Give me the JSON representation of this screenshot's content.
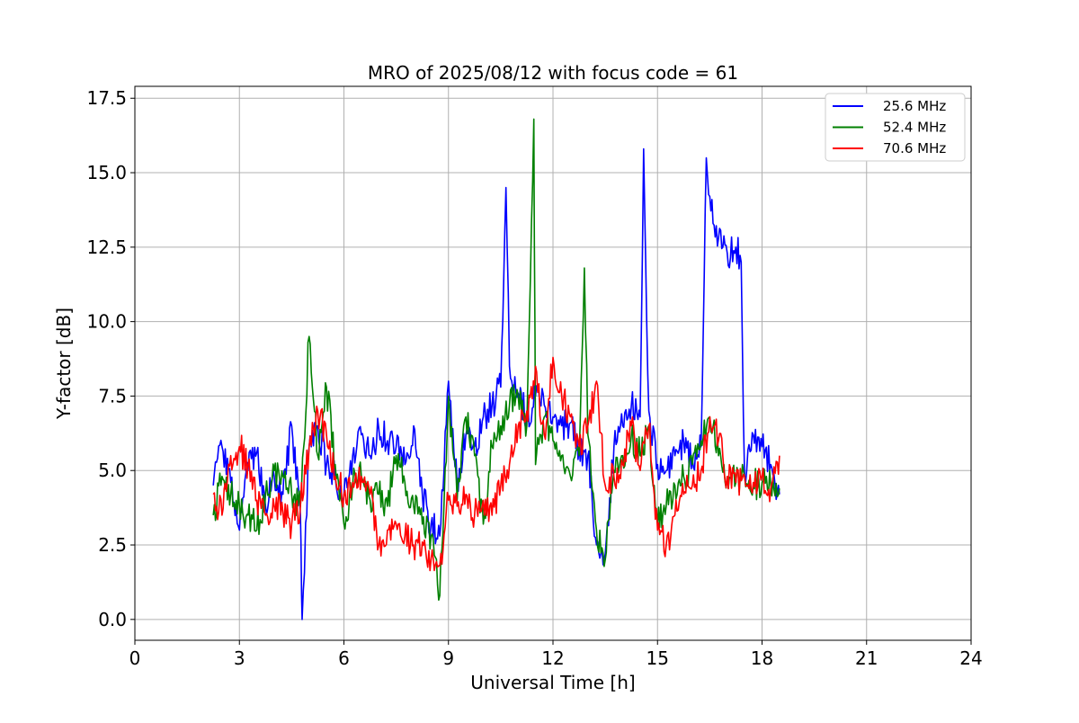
{
  "chart_data": {
    "type": "line",
    "title": "MRO of 2025/08/12 with focus code = 61",
    "xlabel": "Universal Time [h]",
    "ylabel": "Y-factor [dB]",
    "xlim": [
      0,
      24
    ],
    "ylim": [
      -0.7,
      17.9
    ],
    "xticks": [
      0,
      3,
      6,
      9,
      12,
      15,
      18,
      21,
      24
    ],
    "yticks": [
      0.0,
      2.5,
      5.0,
      7.5,
      10.0,
      12.5,
      15.0,
      17.5
    ],
    "xtick_labels": [
      "0",
      "3",
      "6",
      "9",
      "12",
      "15",
      "18",
      "21",
      "24"
    ],
    "ytick_labels": [
      "0.0",
      "2.5",
      "5.0",
      "7.5",
      "10.0",
      "12.5",
      "15.0",
      "17.5"
    ],
    "grid": true,
    "legend_position": "top-right",
    "series": [
      {
        "name": "25.6 MHz",
        "color": "#0000ff",
        "x": [
          2.25,
          2.5,
          2.75,
          3.0,
          3.25,
          3.5,
          3.75,
          4.0,
          4.25,
          4.5,
          4.75,
          4.8,
          5.0,
          5.25,
          5.5,
          5.75,
          6.0,
          6.25,
          6.5,
          6.75,
          7.0,
          7.25,
          7.5,
          7.75,
          8.0,
          8.25,
          8.5,
          8.75,
          9.0,
          9.25,
          9.5,
          9.75,
          10.0,
          10.25,
          10.5,
          10.65,
          10.75,
          11.0,
          11.25,
          11.5,
          11.75,
          12.0,
          12.25,
          12.5,
          12.75,
          13.0,
          13.25,
          13.5,
          13.75,
          14.0,
          14.25,
          14.5,
          14.6,
          14.75,
          15.0,
          15.25,
          15.5,
          15.75,
          16.0,
          16.25,
          16.4,
          16.5,
          16.75,
          17.0,
          17.25,
          17.4,
          17.5,
          17.75,
          18.0,
          18.25,
          18.5
        ],
        "y": [
          4.5,
          5.8,
          4.6,
          3.0,
          5.0,
          5.6,
          3.8,
          4.8,
          4.2,
          6.5,
          3.5,
          0.0,
          5.8,
          6.5,
          5.2,
          4.8,
          4.2,
          5.5,
          6.2,
          5.5,
          6.4,
          6.0,
          5.8,
          5.2,
          6.5,
          4.2,
          3.2,
          2.8,
          8.0,
          4.5,
          6.2,
          5.8,
          6.8,
          7.2,
          7.8,
          14.5,
          8.5,
          7.6,
          6.8,
          7.5,
          7.2,
          6.8,
          6.5,
          6.6,
          5.8,
          5.5,
          2.5,
          2.2,
          5.8,
          6.5,
          7.2,
          6.8,
          15.8,
          7.0,
          5.2,
          5.0,
          5.5,
          6.0,
          5.4,
          5.8,
          15.5,
          14.2,
          12.8,
          12.3,
          12.5,
          12.0,
          4.8,
          6.2,
          5.8,
          5.2,
          4.2
        ]
      },
      {
        "name": "52.4 MHz",
        "color": "#008000",
        "x": [
          2.25,
          2.5,
          2.75,
          3.0,
          3.25,
          3.5,
          3.75,
          4.0,
          4.25,
          4.5,
          4.75,
          5.0,
          5.25,
          5.5,
          5.75,
          6.0,
          6.25,
          6.5,
          6.75,
          7.0,
          7.25,
          7.5,
          7.75,
          8.0,
          8.25,
          8.5,
          8.75,
          9.0,
          9.25,
          9.5,
          9.75,
          10.0,
          10.25,
          10.5,
          10.75,
          11.0,
          11.25,
          11.45,
          11.5,
          11.75,
          12.0,
          12.25,
          12.5,
          12.75,
          12.9,
          13.0,
          13.25,
          13.5,
          13.75,
          14.0,
          14.25,
          14.5,
          14.75,
          15.0,
          15.25,
          15.5,
          15.75,
          16.0,
          16.25,
          16.5,
          16.75,
          17.0,
          17.25,
          17.5,
          17.75,
          18.0,
          18.25,
          18.5
        ],
        "y": [
          3.5,
          4.8,
          4.2,
          3.8,
          3.5,
          3.0,
          4.2,
          5.0,
          4.8,
          4.2,
          3.8,
          9.5,
          5.5,
          7.8,
          5.2,
          3.2,
          4.5,
          4.8,
          4.0,
          4.2,
          3.8,
          5.5,
          4.6,
          3.8,
          3.2,
          2.8,
          0.8,
          7.5,
          4.0,
          6.8,
          5.5,
          3.2,
          5.8,
          6.5,
          7.2,
          7.5,
          6.5,
          16.8,
          5.2,
          6.8,
          6.0,
          5.5,
          4.8,
          5.5,
          11.8,
          6.2,
          3.0,
          2.0,
          5.0,
          5.5,
          6.2,
          5.5,
          6.5,
          3.2,
          3.8,
          4.5,
          4.8,
          5.2,
          6.0,
          6.8,
          5.5,
          4.8,
          4.6,
          4.8,
          4.5,
          4.6,
          4.5,
          4.4
        ]
      },
      {
        "name": "70.6 MHz",
        "color": "#ff0000",
        "x": [
          2.25,
          2.5,
          2.75,
          3.0,
          3.25,
          3.5,
          3.75,
          4.0,
          4.25,
          4.5,
          4.75,
          5.0,
          5.25,
          5.5,
          5.75,
          6.0,
          6.25,
          6.5,
          6.75,
          7.0,
          7.25,
          7.5,
          7.75,
          8.0,
          8.25,
          8.5,
          8.75,
          9.0,
          9.25,
          9.5,
          9.75,
          10.0,
          10.25,
          10.5,
          10.75,
          11.0,
          11.25,
          11.5,
          11.75,
          12.0,
          12.25,
          12.5,
          12.75,
          13.0,
          13.25,
          13.5,
          13.75,
          14.0,
          14.25,
          14.5,
          14.75,
          15.0,
          15.25,
          15.5,
          15.75,
          16.0,
          16.25,
          16.5,
          16.75,
          17.0,
          17.25,
          17.5,
          17.75,
          18.0,
          18.25,
          18.5
        ],
        "y": [
          4.2,
          3.5,
          5.5,
          5.8,
          5.2,
          4.0,
          3.5,
          3.8,
          3.6,
          3.2,
          3.8,
          5.8,
          7.0,
          6.2,
          4.8,
          4.2,
          4.6,
          4.8,
          4.2,
          2.5,
          3.0,
          3.2,
          2.8,
          2.5,
          2.6,
          2.0,
          1.8,
          4.0,
          3.8,
          4.2,
          3.5,
          4.0,
          3.5,
          4.5,
          5.2,
          6.5,
          7.0,
          8.5,
          6.2,
          8.8,
          7.5,
          6.8,
          5.8,
          6.5,
          8.0,
          4.5,
          4.8,
          5.2,
          6.5,
          5.0,
          6.5,
          3.0,
          2.5,
          3.5,
          4.2,
          4.5,
          5.0,
          6.8,
          6.0,
          4.8,
          4.6,
          4.8,
          4.6,
          4.8,
          4.4,
          5.5
        ]
      }
    ]
  }
}
